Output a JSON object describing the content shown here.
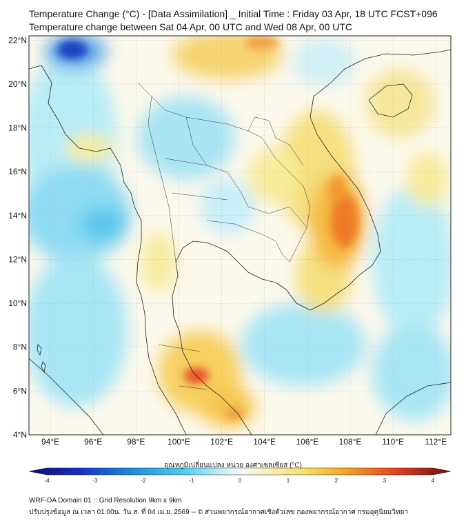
{
  "header": {
    "title_line1": "Temperature Change (°C) - [Data Assimilation] _ Initial Time : Friday 03 Apr, 18 UTC FCST+096",
    "title_line2": "Temperature change between Sat 04 Apr, 00 UTC and Wed 08 Apr, 00 UTC"
  },
  "map": {
    "lat_labels": [
      "22°N",
      "20°N",
      "18°N",
      "16°N",
      "14°N",
      "12°N",
      "10°N",
      "8°N",
      "6°N",
      "4°N"
    ],
    "lon_labels": [
      "94°E",
      "96°E",
      "98°E",
      "100°E",
      "102°E",
      "104°E",
      "106°E",
      "108°E",
      "110°E",
      "112°E"
    ],
    "lat_range": [
      4,
      22.2
    ],
    "lon_range": [
      93,
      112.7
    ]
  },
  "colorbar": {
    "title": "อุณหภูมิเปลี่ยนแปลง หน่วย องศาเซลเซียส (°C)",
    "tick_labels": [
      "-4",
      "-3",
      "-2",
      "-1",
      "0",
      "1",
      "2",
      "3",
      "4"
    ],
    "range": [
      -4,
      4
    ],
    "colors": {
      "min": "#0a0a6e",
      "cold": "#1e6fd8",
      "cool": "#4fd0f0",
      "near_zero": "#f4f8f8",
      "warm": "#f6e79a",
      "hot": "#f5a623",
      "very_hot": "#e8411e",
      "max": "#6e0b0b"
    }
  },
  "footer": {
    "line1": "WRF-DA Domain 01 :: Grid Resolution 9km x 9km",
    "line2": "ปรับปรุงข้อมูล ณ เวลา 01:00น. วัน ส. ที่ 04 เม.ย. 2569 -- © ส่วนพยากรณ์อากาศเชิงตัวเลข กองพยากรณ์อากาศ กรมอุตุนิยมวิทยา"
  }
}
